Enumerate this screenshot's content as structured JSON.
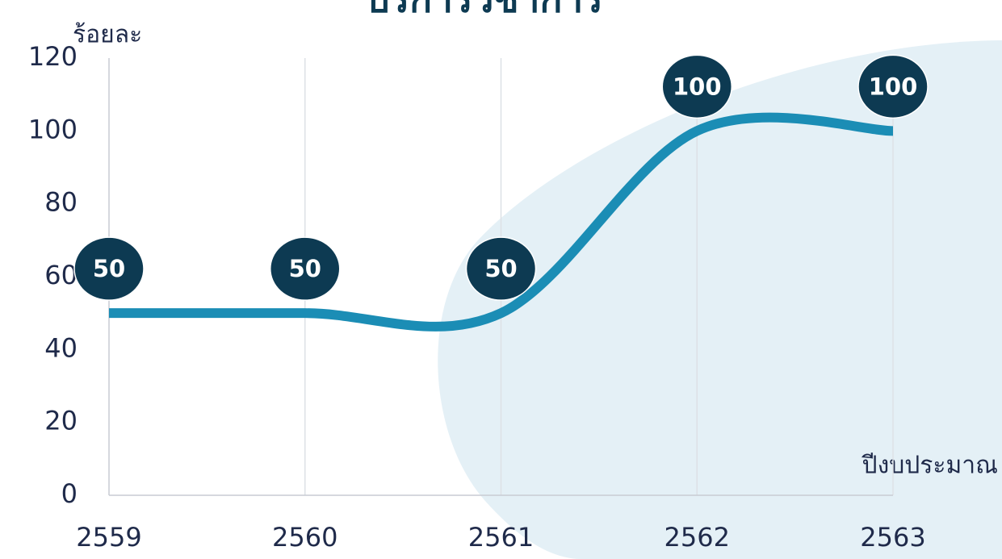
{
  "chart_data": {
    "type": "line",
    "title": "บริการวิชาการ",
    "y_label": "ร้อยละ",
    "x_label": "ปีงบประมาณ",
    "categories": [
      "2559",
      "2560",
      "2561",
      "2562",
      "2563"
    ],
    "series": [
      {
        "name": "ร้อยละ",
        "color": "#1b8db5",
        "values": [
          50,
          50,
          50,
          100,
          100
        ]
      }
    ],
    "ylim": [
      0,
      120
    ],
    "yticks": [
      0,
      20,
      40,
      60,
      80,
      100,
      120
    ],
    "grid": true,
    "smooth": true
  }
}
